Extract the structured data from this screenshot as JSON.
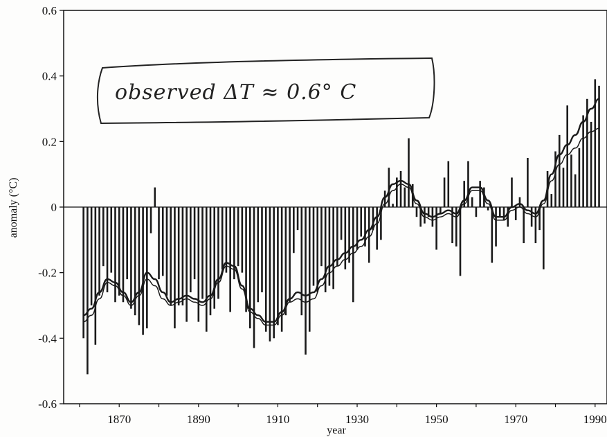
{
  "chart_data": {
    "type": "bar",
    "title": "",
    "xlabel": "year",
    "ylabel": "anomaly (°C)",
    "xlim": [
      1856,
      1993
    ],
    "ylim": [
      -0.6,
      0.6
    ],
    "x_ticks": [
      1870,
      1890,
      1910,
      1930,
      1950,
      1970,
      1990
    ],
    "y_ticks": [
      -0.6,
      -0.4,
      -0.2,
      0,
      0.2,
      0.4,
      0.6
    ],
    "y_tick_labels": [
      "-0.6",
      "-0.4",
      "-0.2",
      "0",
      "0.2",
      "0.4",
      "0.6"
    ],
    "annotation": "observed ΔT ≈ 0.6° C",
    "colors": {
      "bars": "#1a1a1a",
      "lines": "#1a1a1a",
      "axes": "#111111"
    },
    "series": [
      {
        "type": "bar",
        "x": [
          1861,
          1862,
          1863,
          1864,
          1865,
          1866,
          1867,
          1868,
          1869,
          1870,
          1871,
          1872,
          1873,
          1874,
          1875,
          1876,
          1877,
          1878,
          1879,
          1880,
          1881,
          1882,
          1883,
          1884,
          1885,
          1886,
          1887,
          1888,
          1889,
          1890,
          1891,
          1892,
          1893,
          1894,
          1895,
          1896,
          1897,
          1898,
          1899,
          1900,
          1901,
          1902,
          1903,
          1904,
          1905,
          1906,
          1907,
          1908,
          1909,
          1910,
          1911,
          1912,
          1913,
          1914,
          1915,
          1916,
          1917,
          1918,
          1919,
          1920,
          1921,
          1922,
          1923,
          1924,
          1925,
          1926,
          1927,
          1928,
          1929,
          1930,
          1931,
          1932,
          1933,
          1934,
          1935,
          1936,
          1937,
          1938,
          1939,
          1940,
          1941,
          1942,
          1943,
          1944,
          1945,
          1946,
          1947,
          1948,
          1949,
          1950,
          1951,
          1952,
          1953,
          1954,
          1955,
          1956,
          1957,
          1958,
          1959,
          1960,
          1961,
          1962,
          1963,
          1964,
          1965,
          1966,
          1967,
          1968,
          1969,
          1970,
          1971,
          1972,
          1973,
          1974,
          1975,
          1976,
          1977,
          1978,
          1979,
          1980,
          1981,
          1982,
          1983,
          1984,
          1985,
          1986,
          1987,
          1988,
          1989,
          1990,
          1991
        ],
        "values": [
          -0.4,
          -0.51,
          -0.3,
          -0.42,
          -0.27,
          -0.18,
          -0.26,
          -0.2,
          -0.29,
          -0.27,
          -0.29,
          -0.22,
          -0.31,
          -0.33,
          -0.36,
          -0.39,
          -0.37,
          -0.08,
          0.06,
          -0.22,
          -0.21,
          -0.27,
          -0.3,
          -0.37,
          -0.3,
          -0.3,
          -0.35,
          -0.26,
          -0.22,
          -0.35,
          -0.28,
          -0.38,
          -0.33,
          -0.31,
          -0.28,
          -0.19,
          -0.2,
          -0.32,
          -0.22,
          -0.18,
          -0.2,
          -0.32,
          -0.37,
          -0.43,
          -0.29,
          -0.26,
          -0.38,
          -0.41,
          -0.4,
          -0.36,
          -0.38,
          -0.33,
          -0.29,
          -0.14,
          -0.07,
          -0.33,
          -0.45,
          -0.38,
          -0.24,
          -0.26,
          -0.18,
          -0.26,
          -0.24,
          -0.25,
          -0.18,
          -0.1,
          -0.19,
          -0.17,
          -0.29,
          -0.13,
          -0.09,
          -0.12,
          -0.17,
          -0.07,
          -0.13,
          -0.1,
          0.05,
          0.12,
          0.01,
          0.09,
          0.11,
          0.06,
          0.21,
          0.07,
          -0.03,
          -0.06,
          -0.05,
          -0.03,
          -0.06,
          -0.13,
          -0.02,
          0.09,
          0.14,
          -0.11,
          -0.12,
          -0.21,
          0.08,
          0.14,
          0.03,
          -0.03,
          0.08,
          0.06,
          -0.01,
          -0.17,
          -0.12,
          -0.03,
          -0.04,
          -0.06,
          0.09,
          -0.04,
          0.03,
          -0.11,
          0.15,
          -0.06,
          -0.11,
          -0.07,
          -0.19,
          0.11,
          0.04,
          0.17,
          0.22,
          0.12,
          0.31,
          0.16,
          0.1,
          0.18,
          0.28,
          0.33,
          0.26,
          0.39,
          0.37
        ]
      },
      {
        "type": "line",
        "x": [
          1861,
          1863,
          1865,
          1867,
          1869,
          1871,
          1873,
          1875,
          1877,
          1879,
          1881,
          1883,
          1885,
          1887,
          1889,
          1891,
          1893,
          1895,
          1897,
          1899,
          1901,
          1903,
          1905,
          1907,
          1909,
          1911,
          1913,
          1915,
          1917,
          1919,
          1921,
          1923,
          1925,
          1927,
          1929,
          1931,
          1933,
          1935,
          1937,
          1939,
          1941,
          1943,
          1945,
          1947,
          1949,
          1951,
          1953,
          1955,
          1957,
          1959,
          1961,
          1963,
          1965,
          1967,
          1969,
          1971,
          1973,
          1975,
          1977,
          1979,
          1981,
          1983,
          1985,
          1987,
          1989,
          1991
        ],
        "values": [
          -0.33,
          -0.31,
          -0.26,
          -0.22,
          -0.23,
          -0.26,
          -0.29,
          -0.26,
          -0.2,
          -0.22,
          -0.26,
          -0.29,
          -0.28,
          -0.27,
          -0.28,
          -0.29,
          -0.27,
          -0.22,
          -0.17,
          -0.18,
          -0.24,
          -0.31,
          -0.33,
          -0.35,
          -0.35,
          -0.32,
          -0.28,
          -0.26,
          -0.27,
          -0.26,
          -0.22,
          -0.18,
          -0.16,
          -0.14,
          -0.12,
          -0.1,
          -0.07,
          -0.03,
          0.03,
          0.07,
          0.08,
          0.07,
          0.02,
          -0.02,
          -0.03,
          -0.02,
          -0.01,
          -0.02,
          0.02,
          0.06,
          0.06,
          0.02,
          -0.03,
          -0.03,
          0.0,
          0.01,
          -0.01,
          -0.02,
          0.02,
          0.1,
          0.16,
          0.19,
          0.22,
          0.26,
          0.3,
          0.33
        ]
      },
      {
        "type": "line",
        "x": [
          1861,
          1863,
          1865,
          1867,
          1869,
          1871,
          1873,
          1875,
          1877,
          1879,
          1881,
          1883,
          1885,
          1887,
          1889,
          1891,
          1893,
          1895,
          1897,
          1899,
          1901,
          1903,
          1905,
          1907,
          1909,
          1911,
          1913,
          1915,
          1917,
          1919,
          1921,
          1923,
          1925,
          1927,
          1929,
          1931,
          1933,
          1935,
          1937,
          1939,
          1941,
          1943,
          1945,
          1947,
          1949,
          1951,
          1953,
          1955,
          1957,
          1959,
          1961,
          1963,
          1965,
          1967,
          1969,
          1971,
          1973,
          1975,
          1977,
          1979,
          1981,
          1983,
          1985,
          1987,
          1989,
          1991
        ],
        "values": [
          -0.35,
          -0.33,
          -0.28,
          -0.23,
          -0.24,
          -0.27,
          -0.3,
          -0.27,
          -0.22,
          -0.24,
          -0.28,
          -0.3,
          -0.29,
          -0.28,
          -0.29,
          -0.3,
          -0.28,
          -0.23,
          -0.18,
          -0.19,
          -0.25,
          -0.32,
          -0.34,
          -0.36,
          -0.36,
          -0.33,
          -0.29,
          -0.28,
          -0.29,
          -0.28,
          -0.24,
          -0.2,
          -0.18,
          -0.16,
          -0.14,
          -0.12,
          -0.09,
          -0.05,
          0.01,
          0.05,
          0.07,
          0.06,
          0.01,
          -0.03,
          -0.04,
          -0.03,
          -0.02,
          -0.03,
          0.01,
          0.05,
          0.05,
          0.01,
          -0.04,
          -0.04,
          -0.01,
          0.0,
          -0.02,
          -0.03,
          0.01,
          0.08,
          0.13,
          0.16,
          0.18,
          0.21,
          0.23,
          0.24
        ]
      }
    ]
  }
}
